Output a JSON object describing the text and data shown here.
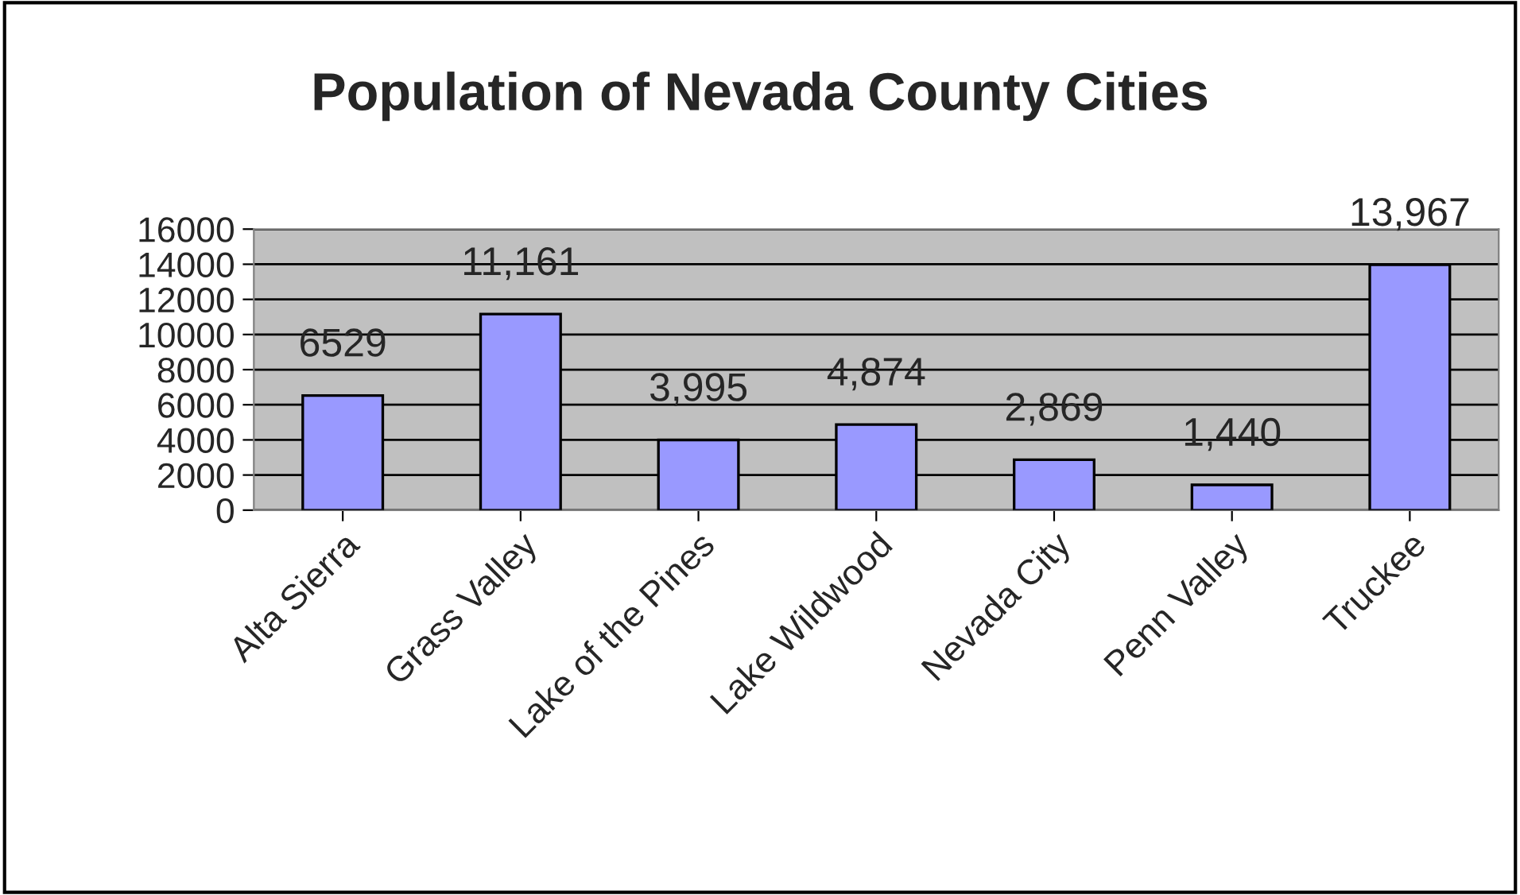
{
  "chart_data": {
    "type": "bar",
    "title": "Population of Nevada County Cities",
    "categories": [
      "Alta Sierra",
      "Grass Valley",
      "Lake of the Pines",
      "Lake Wildwood",
      "Nevada City",
      "Penn Valley",
      "Truckee"
    ],
    "values": [
      6529,
      11161,
      3995,
      4874,
      2869,
      1440,
      13967
    ],
    "value_labels": [
      "6529",
      "11,161",
      "3,995",
      "4,874",
      "2,869",
      "1,440",
      "13,967"
    ],
    "color": "#9999ff",
    "ylim": [
      0,
      16000
    ],
    "yticks": [
      0,
      2000,
      4000,
      6000,
      8000,
      10000,
      12000,
      14000,
      16000
    ],
    "grid": "y",
    "legend": false
  }
}
